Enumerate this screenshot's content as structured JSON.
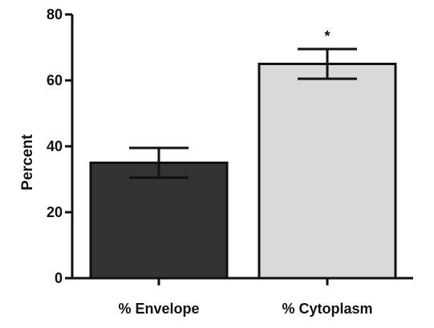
{
  "chart_data": {
    "type": "bar",
    "categories": [
      "% Envelope",
      "% Cytoplasm"
    ],
    "values": [
      35,
      65
    ],
    "errors": [
      4.5,
      4.5
    ],
    "bar_colors": [
      "#333333",
      "#d9d9d9"
    ],
    "ylabel": "Percent",
    "xlabel": "",
    "ylim": [
      0,
      80
    ],
    "yticks": [
      0,
      20,
      40,
      60,
      80
    ],
    "annotations": [
      {
        "category": "% Cytoplasm",
        "text": "*"
      }
    ],
    "grid": false,
    "legend": "none"
  }
}
